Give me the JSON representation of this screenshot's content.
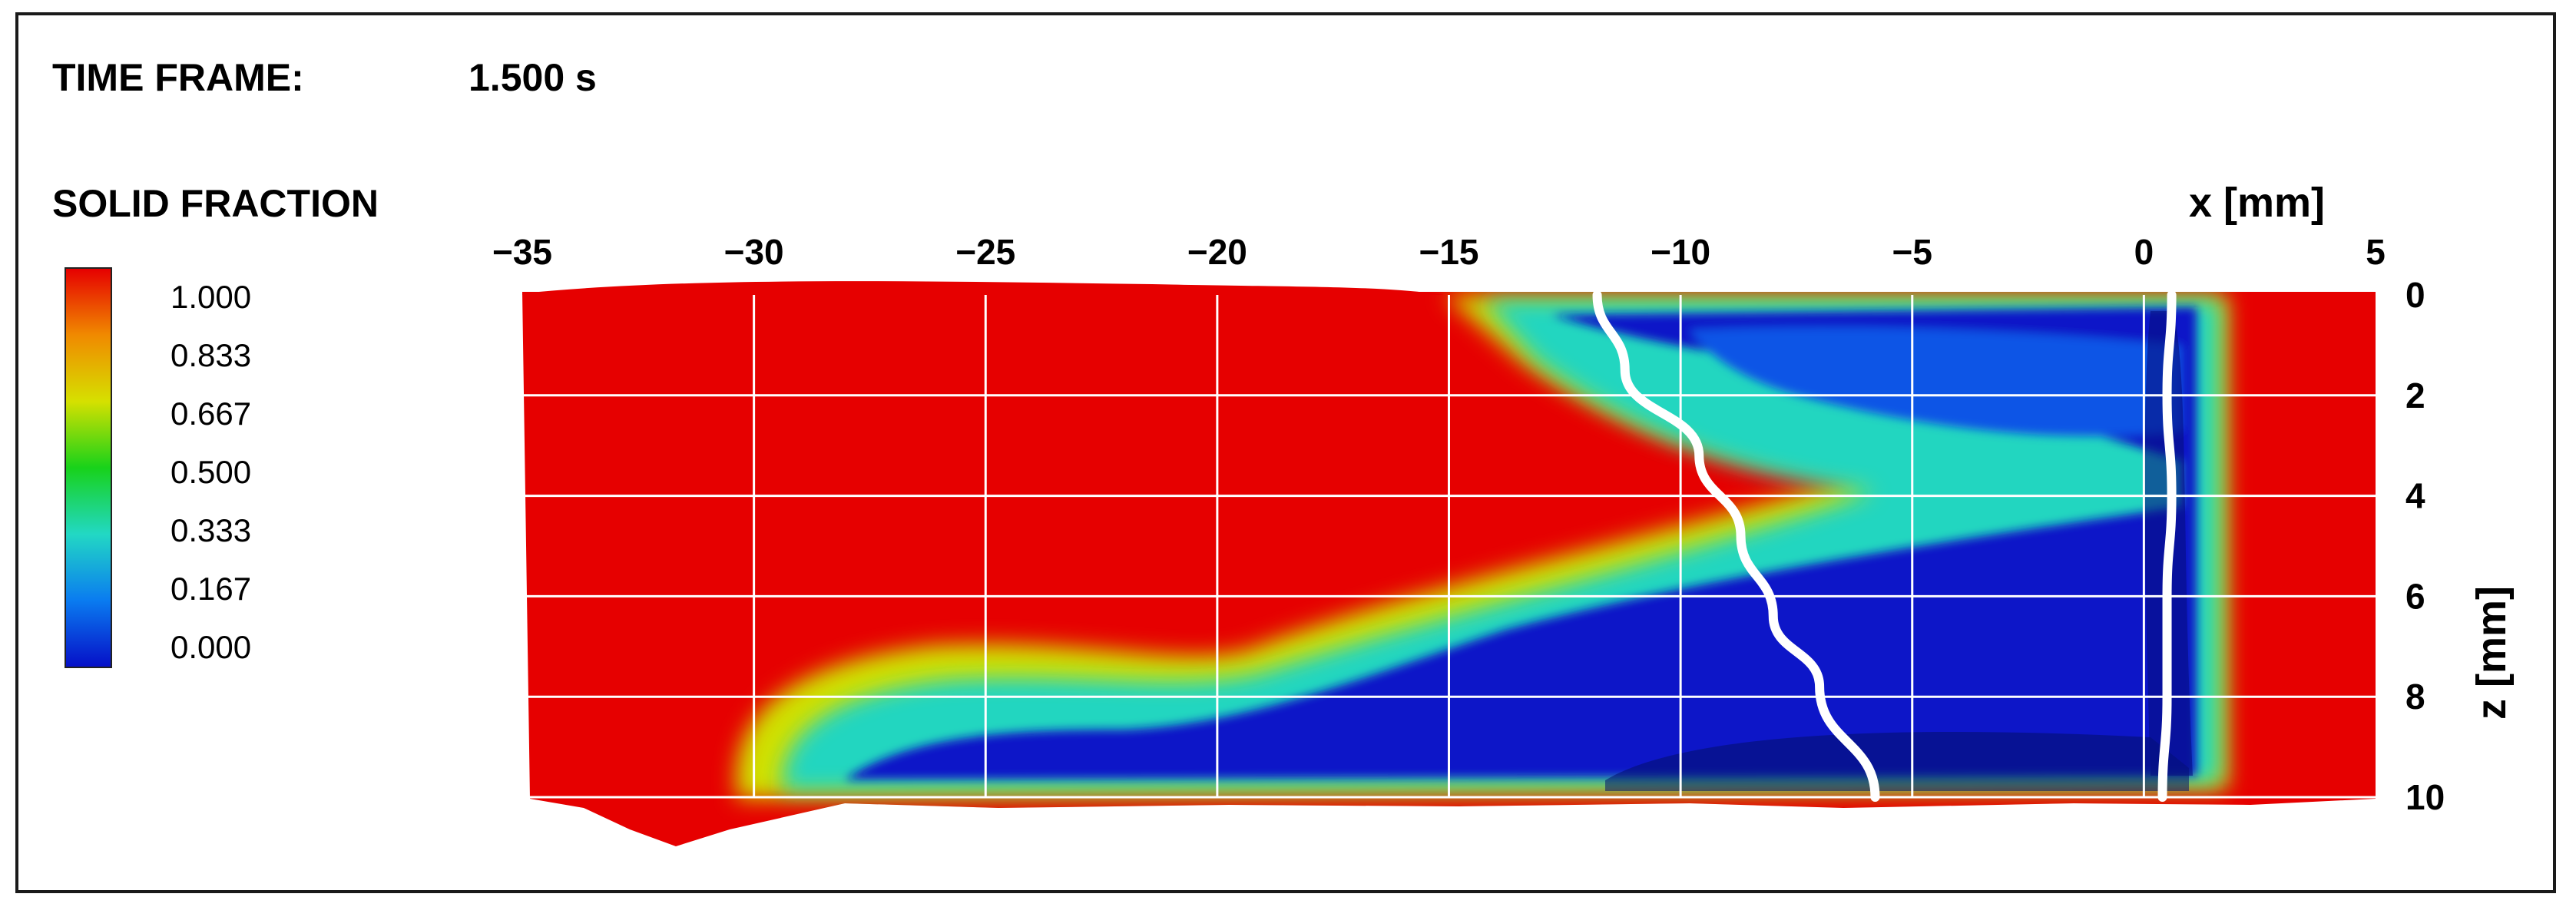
{
  "header": {
    "time_frame_label": "TIME FRAME:",
    "time_frame_value": "1.500 s"
  },
  "legend": {
    "title": "SOLID FRACTION",
    "ticks": [
      "1.000",
      "0.833",
      "0.667",
      "0.500",
      "0.333",
      "0.167",
      "0.000"
    ],
    "colors": [
      "#e60000",
      "#f08a00",
      "#d6e000",
      "#18d21a",
      "#22d8c4",
      "#0a7cf0",
      "#0610c8"
    ]
  },
  "axes": {
    "x_label": "x [mm]",
    "z_label": "z [mm]",
    "x_ticks": [
      "−35",
      "−30",
      "−25",
      "−20",
      "−15",
      "−10",
      "−5",
      "0",
      "5"
    ],
    "z_ticks": [
      "0",
      "2",
      "4",
      "6",
      "8",
      "10"
    ]
  },
  "chart_data": {
    "type": "heatmap",
    "xlim": [
      -35,
      5
    ],
    "zlim": [
      0,
      10
    ],
    "grid": true,
    "colormap": "jet",
    "boundary_curves": [
      {
        "points": [
          [
            -11.8,
            0
          ],
          [
            -11.2,
            1.5
          ],
          [
            -9.6,
            3.2
          ],
          [
            -8.7,
            4.8
          ],
          [
            -8.0,
            6.4
          ],
          [
            -7.0,
            7.8
          ],
          [
            -5.8,
            10
          ]
        ]
      },
      {
        "points": [
          [
            0.6,
            0
          ],
          [
            0.5,
            2
          ],
          [
            0.6,
            4
          ],
          [
            0.5,
            6
          ],
          [
            0.5,
            8
          ],
          [
            0.4,
            10
          ]
        ]
      }
    ]
  }
}
